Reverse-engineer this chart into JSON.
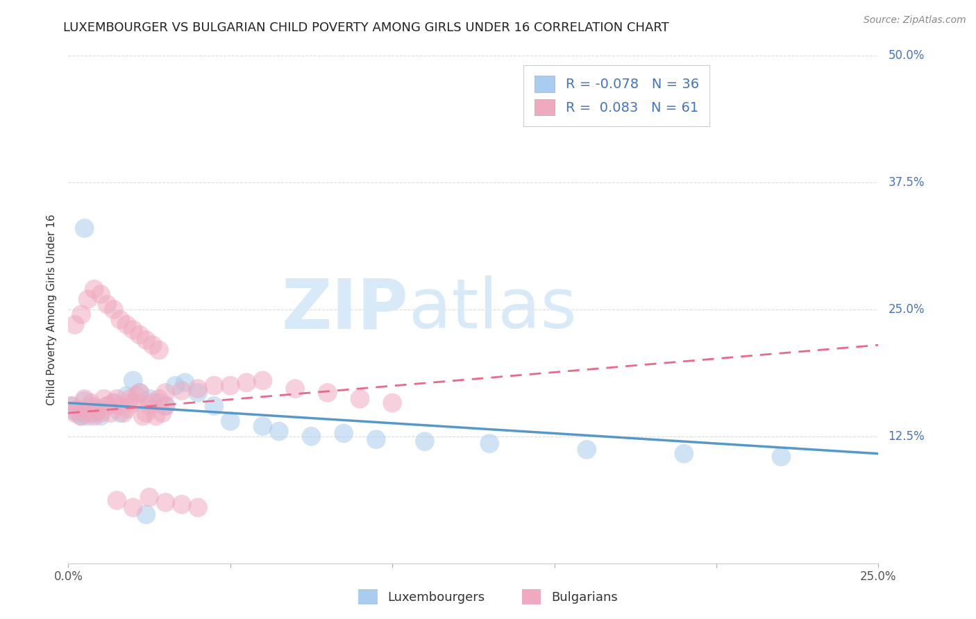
{
  "title": "LUXEMBOURGER VS BULGARIAN CHILD POVERTY AMONG GIRLS UNDER 16 CORRELATION CHART",
  "source": "Source: ZipAtlas.com",
  "ylabel": "Child Poverty Among Girls Under 16",
  "xlim": [
    0.0,
    0.25
  ],
  "ylim": [
    0.0,
    0.5
  ],
  "xticks": [
    0.0,
    0.05,
    0.1,
    0.15,
    0.2,
    0.25
  ],
  "xtick_labels": [
    "0.0%",
    "",
    "",
    "",
    "",
    "25.0%"
  ],
  "ytick_vals": [
    0.0,
    0.125,
    0.25,
    0.375,
    0.5
  ],
  "ytick_labels": [
    "",
    "12.5%",
    "25.0%",
    "37.5%",
    "50.0%"
  ],
  "color_lux": "#aaccee",
  "color_bul": "#f0aac0",
  "line_color_lux": "#5599cc",
  "line_color_bul": "#ee6688",
  "R_lux": -0.078,
  "N_lux": 36,
  "R_bul": 0.083,
  "N_bul": 61,
  "legend_labels": [
    "Luxembourgers",
    "Bulgarians"
  ],
  "background_color": "#ffffff",
  "grid_color": "#cccccc",
  "title_fontsize": 13,
  "axis_label_fontsize": 11,
  "tick_fontsize": 12,
  "watermark_color": "#d8eaf8",
  "lux_x": [
    0.001,
    0.002,
    0.003,
    0.004,
    0.005,
    0.006,
    0.007,
    0.008,
    0.009,
    0.01,
    0.012,
    0.014,
    0.016,
    0.018,
    0.02,
    0.022,
    0.025,
    0.028,
    0.03,
    0.033,
    0.036,
    0.04,
    0.045,
    0.05,
    0.06,
    0.065,
    0.075,
    0.085,
    0.095,
    0.11,
    0.13,
    0.16,
    0.19,
    0.22,
    0.024,
    0.005
  ],
  "lux_y": [
    0.155,
    0.15,
    0.148,
    0.145,
    0.16,
    0.145,
    0.155,
    0.148,
    0.15,
    0.145,
    0.155,
    0.158,
    0.148,
    0.165,
    0.18,
    0.168,
    0.162,
    0.158,
    0.155,
    0.175,
    0.178,
    0.168,
    0.155,
    0.14,
    0.135,
    0.13,
    0.125,
    0.128,
    0.122,
    0.12,
    0.118,
    0.112,
    0.108,
    0.105,
    0.048,
    0.33
  ],
  "bul_x": [
    0.001,
    0.002,
    0.003,
    0.004,
    0.005,
    0.006,
    0.007,
    0.008,
    0.009,
    0.01,
    0.011,
    0.012,
    0.013,
    0.014,
    0.015,
    0.016,
    0.017,
    0.018,
    0.019,
    0.02,
    0.021,
    0.022,
    0.023,
    0.024,
    0.025,
    0.026,
    0.027,
    0.028,
    0.029,
    0.03,
    0.002,
    0.004,
    0.006,
    0.008,
    0.01,
    0.012,
    0.014,
    0.016,
    0.018,
    0.02,
    0.022,
    0.024,
    0.026,
    0.028,
    0.03,
    0.035,
    0.04,
    0.045,
    0.05,
    0.055,
    0.06,
    0.07,
    0.08,
    0.09,
    0.1,
    0.015,
    0.02,
    0.025,
    0.03,
    0.035,
    0.04
  ],
  "bul_y": [
    0.155,
    0.148,
    0.152,
    0.145,
    0.162,
    0.148,
    0.158,
    0.145,
    0.152,
    0.148,
    0.162,
    0.155,
    0.148,
    0.158,
    0.162,
    0.155,
    0.148,
    0.152,
    0.162,
    0.158,
    0.165,
    0.168,
    0.145,
    0.148,
    0.155,
    0.158,
    0.145,
    0.162,
    0.148,
    0.155,
    0.235,
    0.245,
    0.26,
    0.27,
    0.265,
    0.255,
    0.25,
    0.24,
    0.235,
    0.23,
    0.225,
    0.22,
    0.215,
    0.21,
    0.168,
    0.17,
    0.172,
    0.175,
    0.175,
    0.178,
    0.18,
    0.172,
    0.168,
    0.162,
    0.158,
    0.062,
    0.055,
    0.065,
    0.06,
    0.058,
    0.055
  ],
  "lux_trend_x": [
    0.0,
    0.25
  ],
  "lux_trend_y": [
    0.158,
    0.108
  ],
  "bul_trend_x": [
    0.0,
    0.25
  ],
  "bul_trend_y": [
    0.148,
    0.215
  ]
}
